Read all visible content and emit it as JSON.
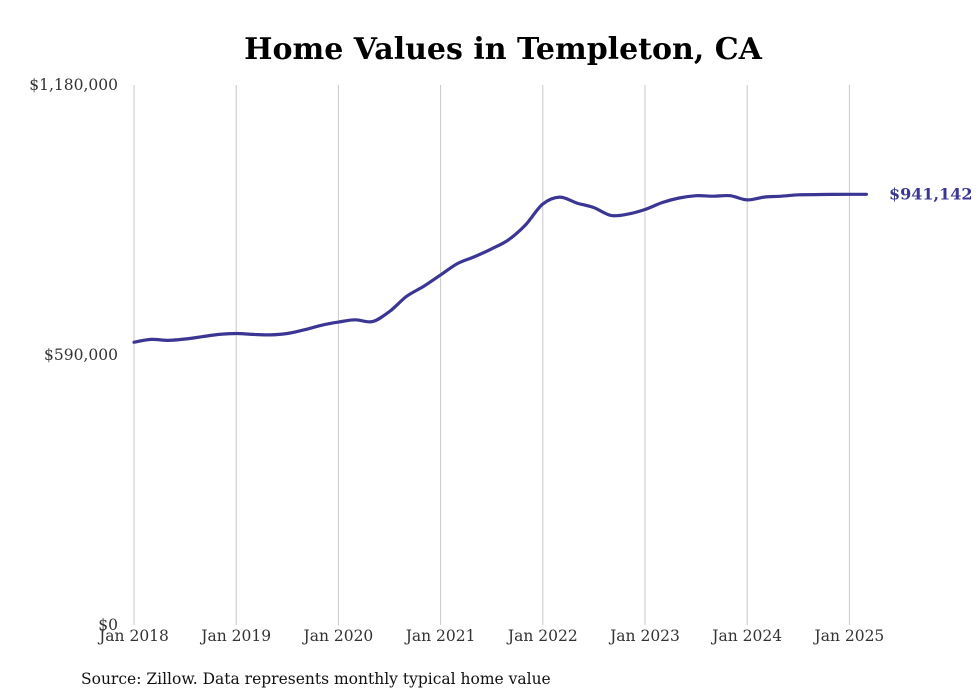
{
  "colors": {
    "series": "#3b3594",
    "grid": "#c8c8c8",
    "text": "#333333"
  },
  "chart_data": {
    "type": "line",
    "title": "Home Values in Templeton, CA",
    "xlabel": "",
    "ylabel": "",
    "ylim": [
      0,
      1180000
    ],
    "y_ticks": [
      {
        "value": 0,
        "label": "$0"
      },
      {
        "value": 590000,
        "label": "$590,000"
      },
      {
        "value": 1180000,
        "label": "$1,180,000"
      }
    ],
    "x_ticks": [
      {
        "value": "2018-01",
        "label": "Jan 2018"
      },
      {
        "value": "2019-01",
        "label": "Jan 2019"
      },
      {
        "value": "2020-01",
        "label": "Jan 2020"
      },
      {
        "value": "2021-01",
        "label": "Jan 2021"
      },
      {
        "value": "2022-01",
        "label": "Jan 2022"
      },
      {
        "value": "2023-01",
        "label": "Jan 2023"
      },
      {
        "value": "2024-01",
        "label": "Jan 2024"
      },
      {
        "value": "2025-01",
        "label": "Jan 2025"
      }
    ],
    "grid": "vertical",
    "last_value_label": "$941,142",
    "series": [
      {
        "x": [
          "2018-01",
          "2018-03",
          "2018-05",
          "2018-07",
          "2018-09",
          "2018-11",
          "2019-01",
          "2019-03",
          "2019-05",
          "2019-07",
          "2019-09",
          "2019-11",
          "2020-01",
          "2020-03",
          "2020-05",
          "2020-07",
          "2020-09",
          "2020-11",
          "2021-01",
          "2021-03",
          "2021-05",
          "2021-07",
          "2021-09",
          "2021-11",
          "2022-01",
          "2022-03",
          "2022-05",
          "2022-07",
          "2022-09",
          "2022-11",
          "2023-01",
          "2023-03",
          "2023-05",
          "2023-07",
          "2023-09",
          "2023-11",
          "2024-01",
          "2024-03",
          "2024-05",
          "2024-07",
          "2024-09",
          "2024-11",
          "2025-01",
          "2025-03"
        ],
        "values": [
          618000,
          624000,
          622000,
          625000,
          630000,
          635000,
          637000,
          635000,
          634000,
          637000,
          645000,
          655000,
          662000,
          667000,
          663000,
          685000,
          718000,
          740000,
          765000,
          790000,
          805000,
          822000,
          842000,
          875000,
          920000,
          935000,
          922000,
          912000,
          895000,
          898000,
          908000,
          923000,
          933000,
          938000,
          937000,
          938000,
          929000,
          935000,
          937000,
          940000,
          940600,
          941000,
          941100,
          941142
        ]
      }
    ]
  },
  "source": "Source: Zillow. Data represents monthly typical home value"
}
